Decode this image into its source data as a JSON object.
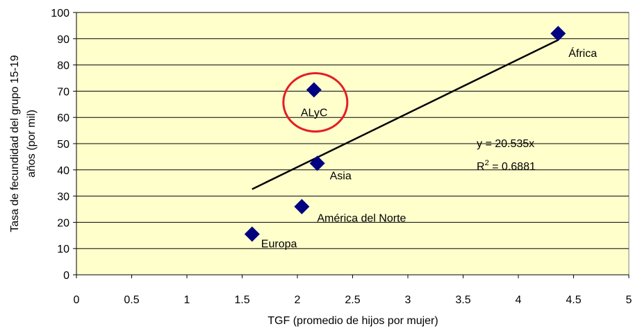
{
  "chart_data": {
    "type": "scatter",
    "x_label": "TGF (promedio de hijos por mujer)",
    "y_label": [
      "Tasa de fecundidad del grupo 15-19",
      "años (por mil)"
    ],
    "points": [
      {
        "name": "Europa",
        "x": 1.59,
        "y": 15.5
      },
      {
        "name": "América del Norte",
        "x": 2.04,
        "y": 26
      },
      {
        "name": "Asia",
        "x": 2.18,
        "y": 42.5
      },
      {
        "name": "ALyC",
        "x": 2.15,
        "y": 70.5
      },
      {
        "name": "África",
        "x": 4.36,
        "y": 92
      }
    ],
    "color": "#000080",
    "plot_background": "#ffffcc",
    "trendline": {
      "x": [
        1.59,
        4.36
      ],
      "y": [
        32.65,
        89.53
      ],
      "color": "#000000"
    },
    "equation": "y = 20.535x",
    "r_squared": {
      "base": "R",
      "sup": "2",
      "rest": " = 0.6881"
    },
    "highlight_color": "#e31e24",
    "xlim": [
      0,
      5
    ],
    "xticks": [
      0,
      0.5,
      1,
      1.5,
      2,
      2.5,
      3,
      3.5,
      4,
      4.5,
      5
    ],
    "ylim": [
      0,
      100
    ],
    "yticks": [
      0,
      10,
      20,
      30,
      40,
      50,
      60,
      70,
      80,
      90,
      100
    ],
    "grid": true
  }
}
